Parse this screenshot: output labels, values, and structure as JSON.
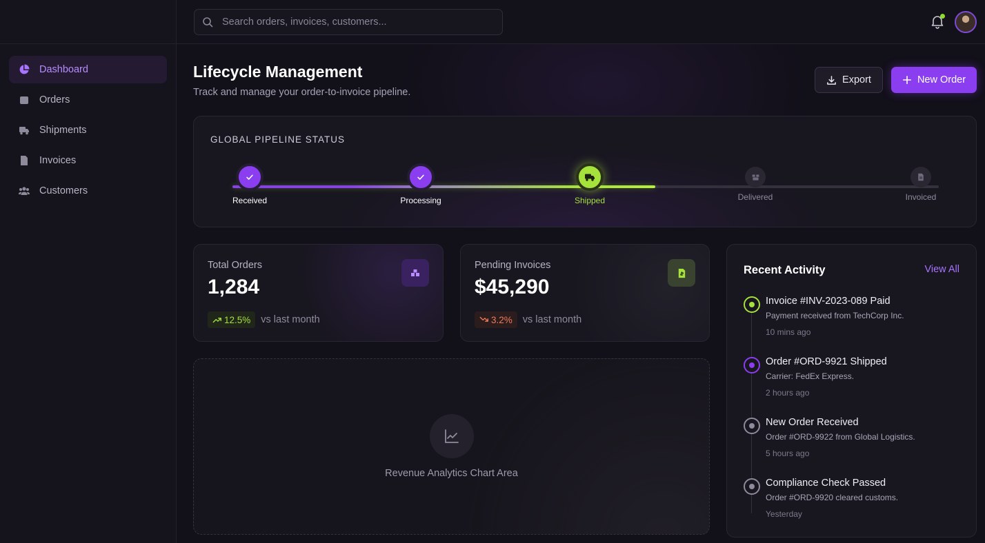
{
  "sidebar": {
    "items": [
      {
        "label": "Dashboard",
        "icon": "pie-chart-icon",
        "active": true
      },
      {
        "label": "Orders",
        "icon": "box-icon"
      },
      {
        "label": "Shipments",
        "icon": "truck-icon"
      },
      {
        "label": "Invoices",
        "icon": "invoice-icon"
      },
      {
        "label": "Customers",
        "icon": "users-icon"
      }
    ]
  },
  "search": {
    "placeholder": "Search orders, invoices, customers..."
  },
  "header": {
    "title": "Lifecycle Management",
    "subtitle": "Track and manage your order-to-invoice pipeline.",
    "export_label": "Export",
    "new_order_label": "New Order"
  },
  "pipeline": {
    "title": "GLOBAL PIPELINE STATUS",
    "progress_percent": 60,
    "stages": [
      {
        "label": "Received",
        "state": "done"
      },
      {
        "label": "Processing",
        "state": "done"
      },
      {
        "label": "Shipped",
        "state": "active"
      },
      {
        "label": "Delivered",
        "state": "pending"
      },
      {
        "label": "Invoiced",
        "state": "pending"
      }
    ]
  },
  "stats": {
    "total_orders": {
      "label": "Total Orders",
      "value": "1,284",
      "trend": "12.5%",
      "trend_note": "vs last month",
      "direction": "up"
    },
    "pending_invoices": {
      "label": "Pending Invoices",
      "value": "$45,290",
      "trend": "3.2%",
      "trend_note": "vs last month",
      "direction": "down"
    }
  },
  "chart_placeholder": {
    "label": "Revenue Analytics Chart Area"
  },
  "activity": {
    "title": "Recent Activity",
    "view_all": "View All",
    "items": [
      {
        "title": "Invoice #INV-2023-089 Paid",
        "desc": "Payment received from TechCorp Inc.",
        "time": "10 mins ago",
        "color": "#a6e23c"
      },
      {
        "title": "Order #ORD-9921 Shipped",
        "desc": "Carrier: FedEx Express.",
        "time": "2 hours ago",
        "color": "#8a3ef0"
      },
      {
        "title": "New Order Received",
        "desc": "Order #ORD-9922 from Global Logistics.",
        "time": "5 hours ago",
        "color": "#8f8b9d"
      },
      {
        "title": "Compliance Check Passed",
        "desc": "Order #ORD-9920 cleared customs.",
        "time": "Yesterday",
        "color": "#8f8b9d"
      }
    ]
  },
  "colors": {
    "accent": "#8a3ef0",
    "success": "#a6e23c",
    "danger": "#f07a5a"
  }
}
